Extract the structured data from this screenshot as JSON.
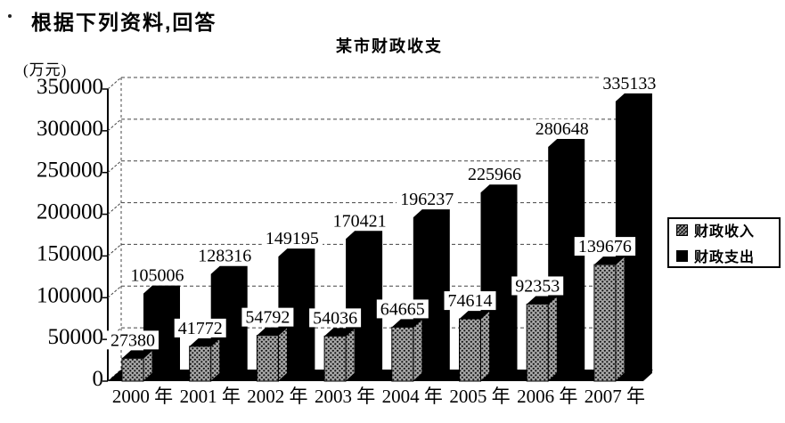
{
  "page": {
    "heading": "根据下列资料,回答"
  },
  "chart_data": {
    "type": "bar",
    "title": "某市财政收支",
    "unit_label": "(万元)",
    "categories": [
      "2000 年",
      "2001 年",
      "2002 年",
      "2003 年",
      "2004 年",
      "2005 年",
      "2006 年",
      "2007 年"
    ],
    "series": [
      {
        "key": "revenue",
        "name": "财政收入",
        "style": "hatched",
        "values": [
          27380,
          41772,
          54792,
          54036,
          64665,
          74614,
          92353,
          139676
        ]
      },
      {
        "key": "expenditure",
        "name": "财政支出",
        "style": "solid-black",
        "values": [
          105006,
          128316,
          149195,
          170421,
          196237,
          225966,
          280648,
          335133
        ]
      }
    ],
    "ylabel": "(万元)",
    "xlabel": "",
    "ylim": [
      0,
      350000
    ],
    "yticks": [
      0,
      50000,
      100000,
      150000,
      200000,
      250000,
      300000,
      350000
    ],
    "grid": "dashed-horizontal",
    "legend_position": "right",
    "colors": {
      "revenue_fill": "#a8a8a8",
      "revenue_dots": "#111111",
      "expenditure_fill": "#000000",
      "axis": "#000000",
      "grid": "#444444",
      "label_bg": "#ffffff"
    },
    "effect": "3d-columns"
  }
}
